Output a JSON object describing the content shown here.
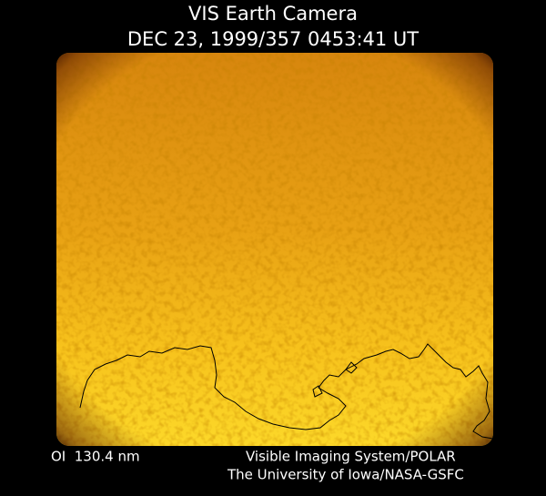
{
  "header": {
    "title": "VIS Earth Camera",
    "subtitle": "DEC 23, 1999/357 0453:41 UT"
  },
  "footer": {
    "filter": "OI  130.4 nm",
    "instrument": "Visible Imaging System/POLAR",
    "credit": "The University of Iowa/NASA-GSFC"
  }
}
